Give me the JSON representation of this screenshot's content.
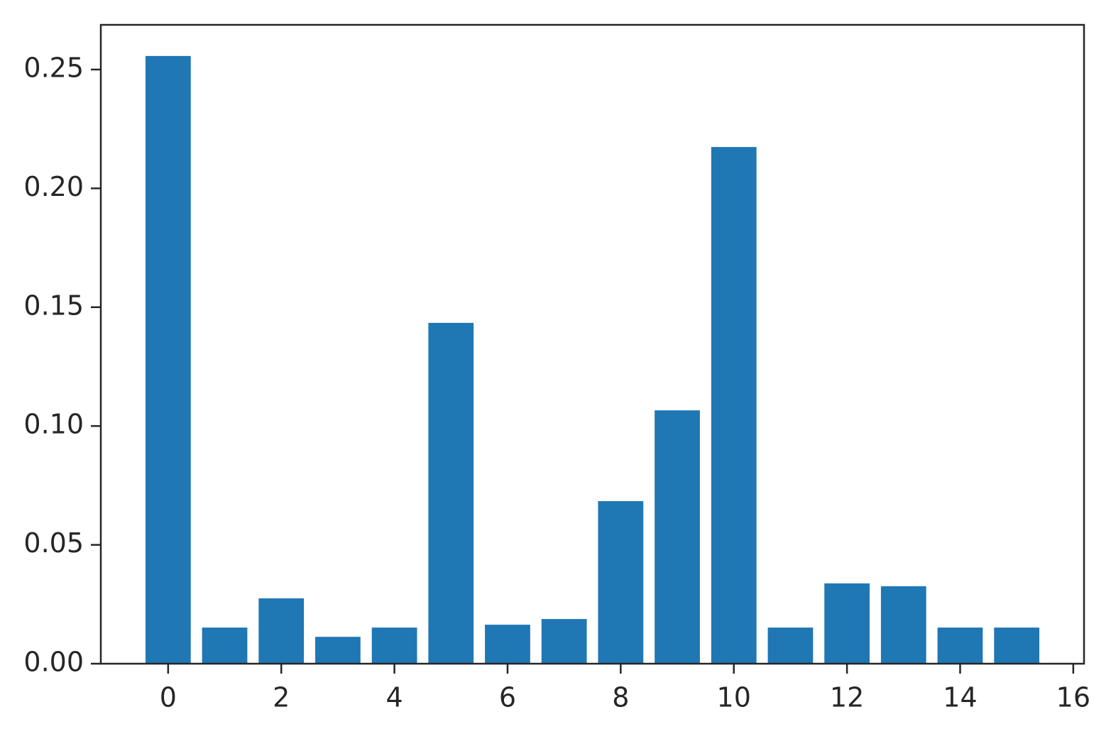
{
  "chart_data": {
    "type": "bar",
    "x": [
      0,
      1,
      2,
      3,
      4,
      5,
      6,
      7,
      8,
      9,
      10,
      11,
      12,
      13,
      14,
      15
    ],
    "values": [
      0.2557,
      0.0152,
      0.0275,
      0.0113,
      0.0152,
      0.1434,
      0.0164,
      0.0188,
      0.0684,
      0.1066,
      0.2174,
      0.0152,
      0.0338,
      0.0326,
      0.0152,
      0.0152
    ],
    "color": "#1f77b4",
    "xlim": [
      -1.19,
      16.19
    ],
    "xticks": [
      0,
      2,
      4,
      6,
      8,
      10,
      12,
      14,
      16
    ],
    "ylim": [
      0,
      0.2688
    ],
    "yticks": [
      {
        "value": 0,
        "label": "0.00"
      },
      0.05,
      {
        "value": 0.1,
        "label": "0.10"
      },
      0.15,
      {
        "value": 0.2,
        "label": "0.20"
      },
      0.25
    ],
    "grid": false
  }
}
